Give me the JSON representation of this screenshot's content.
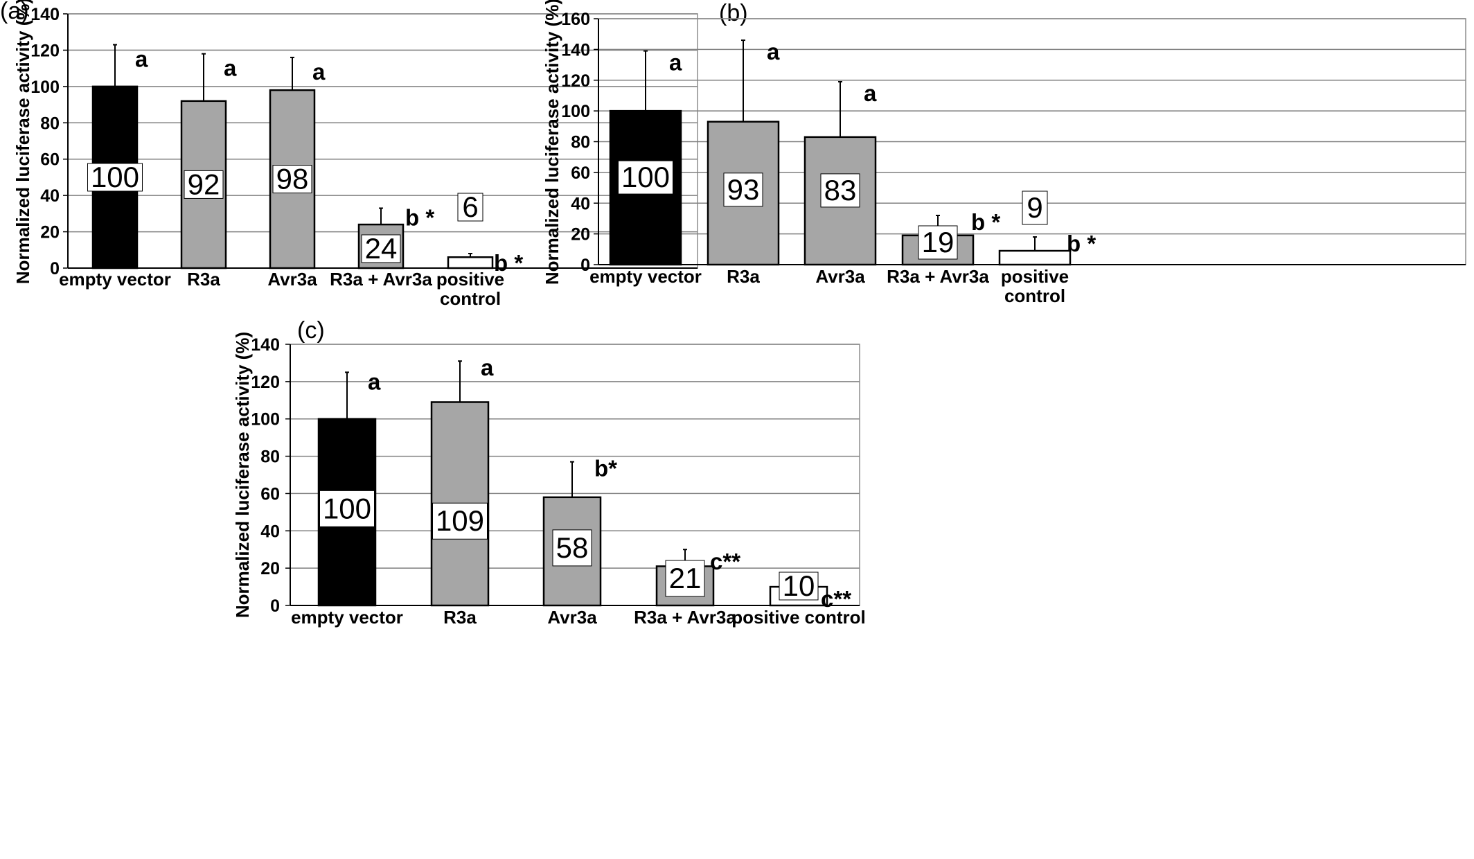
{
  "chart_data": [
    {
      "panel_label": "(a)",
      "type": "bar",
      "ylabel": "Normalized luciferase activity (%)",
      "ylim": [
        0,
        140
      ],
      "yticks": [
        0,
        20,
        40,
        60,
        80,
        100,
        120,
        140
      ],
      "grid": true,
      "categories": [
        "empty vector",
        "R3a",
        "Avr3a",
        "R3a + Avr3a",
        "positive control"
      ],
      "values": [
        100,
        92,
        98,
        24,
        6
      ],
      "error_upper": [
        123,
        118,
        116,
        33,
        8
      ],
      "value_labels": [
        "100",
        "92",
        "98",
        "24",
        "6"
      ],
      "significance": [
        "a",
        "a",
        "a",
        "b *",
        "b *"
      ],
      "bar_colors": [
        "#000000",
        "#a6a6a6",
        "#a6a6a6",
        "#a6a6a6",
        "#ffffff"
      ]
    },
    {
      "panel_label": "(b)",
      "type": "bar",
      "ylabel": "Normalized luciferase activity (%)",
      "ylim": [
        0,
        160
      ],
      "yticks": [
        0,
        20,
        40,
        60,
        80,
        100,
        120,
        140,
        160
      ],
      "grid": true,
      "categories": [
        "empty vector",
        "R3a",
        "Avr3a",
        "R3a + Avr3a",
        "positive control"
      ],
      "values": [
        100,
        93,
        83,
        19,
        9
      ],
      "error_upper": [
        139,
        146,
        119,
        32,
        18
      ],
      "value_labels": [
        "100",
        "93",
        "83",
        "19",
        "9"
      ],
      "significance": [
        "a",
        "a",
        "a",
        "b *",
        "b *"
      ],
      "bar_colors": [
        "#000000",
        "#a6a6a6",
        "#a6a6a6",
        "#a6a6a6",
        "#ffffff"
      ]
    },
    {
      "panel_label": "(c)",
      "type": "bar",
      "ylabel": "Normalized luciferase activity (%)",
      "ylim": [
        0,
        140
      ],
      "yticks": [
        0,
        20,
        40,
        60,
        80,
        100,
        120,
        140
      ],
      "grid": true,
      "categories": [
        "empty vector",
        "R3a",
        "Avr3a",
        "R3a + Avr3a",
        "positive control"
      ],
      "values": [
        100,
        109,
        58,
        21,
        10
      ],
      "error_upper": [
        125,
        131,
        77,
        30,
        10
      ],
      "value_labels": [
        "100",
        "109",
        "58",
        "21",
        "10"
      ],
      "significance": [
        "a",
        "a",
        "b*",
        "c**",
        "c**"
      ],
      "bar_colors": [
        "#000000",
        "#a6a6a6",
        "#a6a6a6",
        "#a6a6a6",
        "#ffffff"
      ]
    }
  ]
}
